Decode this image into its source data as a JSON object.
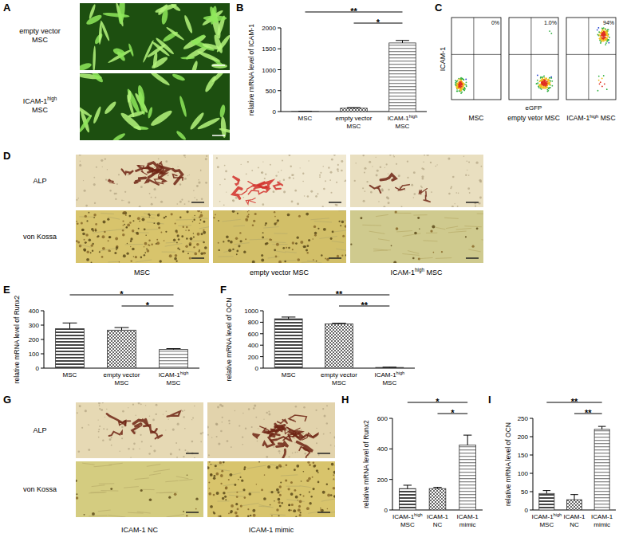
{
  "panel_labels": [
    "A",
    "B",
    "C",
    "D",
    "E",
    "F",
    "G",
    "H",
    "I"
  ],
  "panel_a": {
    "row_labels": [
      "empty vector\nMSC",
      "ICAM-1high\nMSC"
    ]
  },
  "panel_c": {
    "y_label": "ICAM-1",
    "x_label": "eGFP",
    "plots": [
      {
        "name": "MSC",
        "percent": 0,
        "percent_label": "0%"
      },
      {
        "name": "empty vetor MSC",
        "percent": 1.0,
        "percent_label": "1.0%"
      },
      {
        "name": "ICAM-1high MSC",
        "percent": 94,
        "percent_label": "94%"
      }
    ]
  },
  "panel_d": {
    "row_labels": [
      "ALP",
      "von Kossa"
    ],
    "column_labels": [
      "MSC",
      "empty vector MSC",
      "ICAM-1high MSC"
    ]
  },
  "panel_g": {
    "row_labels": [
      "ALP",
      "von Kossa"
    ],
    "column_labels": [
      "ICAM-1 NC",
      "ICAM-1 mimic"
    ]
  },
  "chart_data": [
    {
      "type": "bar",
      "y_label": "relative mRNA level of ICAM-1",
      "categories": [
        "MSC",
        "empty vector\nMSC",
        "ICAM-1high\nMSC"
      ],
      "values": [
        5,
        80,
        1640
      ],
      "errors": [
        0,
        15,
        60
      ],
      "colors": [
        "#444444",
        "#666666",
        "#888888"
      ],
      "ylim": [
        0,
        2000
      ],
      "yticks": [
        0,
        500,
        1000,
        1500,
        2000
      ],
      "significance": [
        {
          "from": 0,
          "to": 2,
          "label": "**"
        },
        {
          "from": 1,
          "to": 2,
          "label": "*"
        }
      ]
    },
    {
      "type": "bar",
      "y_label": "relative mRNA level of Runx2",
      "categories": [
        "MSC",
        "empty vector\nMSC",
        "ICAM-1high\nMSC"
      ],
      "values": [
        275,
        265,
        130
      ],
      "errors": [
        40,
        18,
        6
      ],
      "colors": [
        "#444444",
        "#666666",
        "#888888"
      ],
      "ylim": [
        0,
        400
      ],
      "yticks": [
        0,
        100,
        200,
        300,
        400
      ],
      "significance": [
        {
          "from": 0,
          "to": 2,
          "label": "*"
        },
        {
          "from": 1,
          "to": 2,
          "label": "*"
        }
      ]
    },
    {
      "type": "bar",
      "y_label": "relative mRNA level of OCN",
      "categories": [
        "MSC",
        "empty vector\nMSC",
        "ICAM-1high\nMSC"
      ],
      "values": [
        860,
        770,
        12
      ],
      "errors": [
        30,
        12,
        5
      ],
      "colors": [
        "#444444",
        "#666666",
        "#888888"
      ],
      "ylim": [
        0,
        1000
      ],
      "yticks": [
        0,
        200,
        400,
        600,
        800,
        1000
      ],
      "significance": [
        {
          "from": 0,
          "to": 2,
          "label": "**"
        },
        {
          "from": 1,
          "to": 2,
          "label": "**"
        }
      ]
    },
    {
      "type": "bar",
      "y_label": "relative mRNA level of Runx2",
      "categories": [
        "ICAM-1high\nMSC",
        "ICAM-1\nNC",
        "ICAM-1\nmimic"
      ],
      "values": [
        140,
        140,
        425
      ],
      "errors": [
        22,
        8,
        65
      ],
      "colors": [
        "#444444",
        "#666666",
        "#888888"
      ],
      "ylim": [
        0,
        600
      ],
      "yticks": [
        0,
        200,
        400,
        600
      ],
      "significance": [
        {
          "from": 0,
          "to": 2,
          "label": "*"
        },
        {
          "from": 1,
          "to": 2,
          "label": "*"
        }
      ]
    },
    {
      "type": "bar",
      "y_label": "relative mRNA level of OCN",
      "categories": [
        "ICAM-1high\nMSC",
        "ICAM-1\nNC",
        "ICAM-1\nmimic"
      ],
      "values": [
        45,
        28,
        220
      ],
      "errors": [
        8,
        14,
        8
      ],
      "colors": [
        "#444444",
        "#666666",
        "#888888"
      ],
      "ylim": [
        0,
        250
      ],
      "yticks": [
        0,
        50,
        100,
        150,
        200,
        250
      ],
      "significance": [
        {
          "from": 0,
          "to": 2,
          "label": "**"
        },
        {
          "from": 1,
          "to": 2,
          "label": "**"
        }
      ]
    }
  ]
}
